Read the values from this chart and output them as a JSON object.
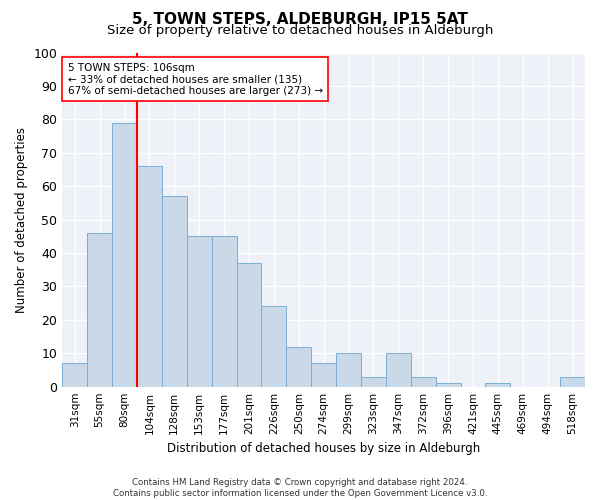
{
  "title": "5, TOWN STEPS, ALDEBURGH, IP15 5AT",
  "subtitle": "Size of property relative to detached houses in Aldeburgh",
  "xlabel": "Distribution of detached houses by size in Aldeburgh",
  "ylabel": "Number of detached properties",
  "categories": [
    "31sqm",
    "55sqm",
    "80sqm",
    "104sqm",
    "128sqm",
    "153sqm",
    "177sqm",
    "201sqm",
    "226sqm",
    "250sqm",
    "274sqm",
    "299sqm",
    "323sqm",
    "347sqm",
    "372sqm",
    "396sqm",
    "421sqm",
    "445sqm",
    "469sqm",
    "494sqm",
    "518sqm"
  ],
  "values": [
    7,
    46,
    79,
    66,
    57,
    45,
    45,
    37,
    24,
    12,
    7,
    10,
    3,
    10,
    3,
    1,
    0,
    1,
    0,
    0,
    3
  ],
  "bar_color": "#c9d9e8",
  "bar_edge_color": "#7bafd4",
  "line_x_index": 2.5,
  "line_color": "red",
  "annotation_line1": "5 TOWN STEPS: 106sqm",
  "annotation_line2": "← 33% of detached houses are smaller (135)",
  "annotation_line3": "67% of semi-detached houses are larger (273) →",
  "annotation_box_color": "white",
  "annotation_box_edge": "red",
  "ylim": [
    0,
    100
  ],
  "yticks": [
    0,
    10,
    20,
    30,
    40,
    50,
    60,
    70,
    80,
    90,
    100
  ],
  "footer": "Contains HM Land Registry data © Crown copyright and database right 2024.\nContains public sector information licensed under the Open Government Licence v3.0.",
  "bg_color": "#eef2f8",
  "title_fontsize": 11,
  "subtitle_fontsize": 9.5
}
